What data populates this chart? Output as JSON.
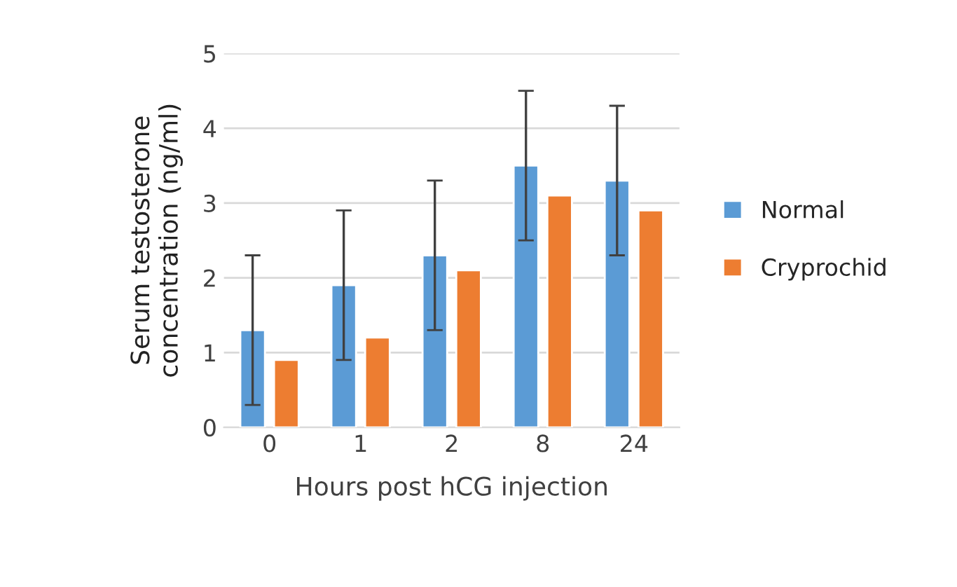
{
  "chart_data": {
    "type": "bar",
    "xlabel": "Hours post hCG injection",
    "ylabel": "Serum testosterone\nconcentration (ng/ml)",
    "categories": [
      "0",
      "1",
      "2",
      "8",
      "24"
    ],
    "series": [
      {
        "name": "Normal",
        "color": "#5b9bd5",
        "values": [
          1.3,
          1.9,
          2.3,
          3.5,
          3.3
        ],
        "errors": [
          1.0,
          1.0,
          1.0,
          1.0,
          1.0
        ]
      },
      {
        "name": "Cryprochid",
        "color": "#ed7d31",
        "values": [
          0.9,
          1.2,
          2.1,
          3.1,
          2.9
        ]
      }
    ],
    "ylim": [
      0,
      5
    ],
    "yticks": [
      0,
      1,
      2,
      3,
      4,
      5
    ],
    "grid": "y",
    "legend": "right"
  }
}
